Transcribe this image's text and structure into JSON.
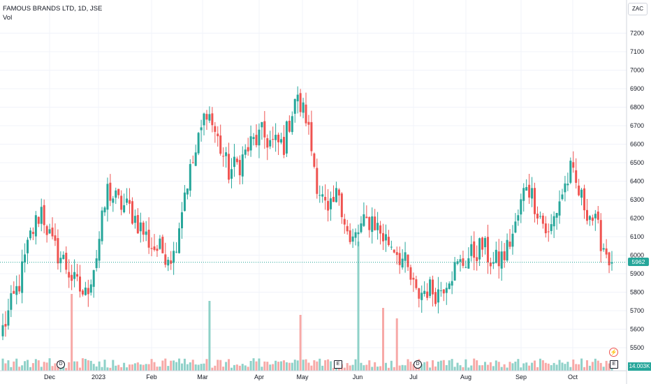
{
  "header": {
    "title": "FAMOUS BRANDS LTD, 1D, JSE",
    "volume_label": "Vol"
  },
  "currency": "ZAC",
  "last_price_label": "5962",
  "volume_value_label": "14.003K",
  "markers": {
    "dividend": "D",
    "earnings": "E",
    "split": "⚡"
  },
  "colors": {
    "up": "#26a69a",
    "down": "#ef5350",
    "up_volume": "#8ed1c8",
    "down_volume": "#f7a9a7",
    "grid": "#f0f3fa"
  },
  "chart_data": {
    "type": "candlestick",
    "title": "FAMOUS BRANDS LTD, 1D, JSE",
    "y_axis": {
      "label": "",
      "range": [
        5450,
        7300
      ],
      "ticks": [
        5500,
        5600,
        5700,
        5800,
        5900,
        6000,
        6100,
        6200,
        6300,
        6400,
        6500,
        6600,
        6700,
        6800,
        6900,
        7000,
        7100,
        7200
      ]
    },
    "x_axis": {
      "tick_labels": [
        "Dec",
        "2023",
        "Feb",
        "Mar",
        "Apr",
        "May",
        "Jun",
        "Jul",
        "Aug",
        "Sep",
        "Oct"
      ]
    },
    "grid": true,
    "last_price": 5962,
    "last_volume": "14.003K",
    "waypoints_close": [
      [
        0,
        5600
      ],
      [
        6,
        5850
      ],
      [
        10,
        6100
      ],
      [
        14,
        6250
      ],
      [
        18,
        6050
      ],
      [
        22,
        5970
      ],
      [
        26,
        5850
      ],
      [
        30,
        5780
      ],
      [
        34,
        6000
      ],
      [
        38,
        6350
      ],
      [
        42,
        6280
      ],
      [
        46,
        6250
      ],
      [
        50,
        6150
      ],
      [
        54,
        6050
      ],
      [
        58,
        6020
      ],
      [
        62,
        6000
      ],
      [
        66,
        6350
      ],
      [
        70,
        6550
      ],
      [
        74,
        6800
      ],
      [
        78,
        6620
      ],
      [
        82,
        6450
      ],
      [
        86,
        6500
      ],
      [
        90,
        6600
      ],
      [
        94,
        6650
      ],
      [
        98,
        6600
      ],
      [
        102,
        6600
      ],
      [
        106,
        6850
      ],
      [
        110,
        6750
      ],
      [
        114,
        6400
      ],
      [
        118,
        6200
      ],
      [
        122,
        6350
      ],
      [
        126,
        6050
      ],
      [
        130,
        6150
      ],
      [
        134,
        6200
      ],
      [
        138,
        6100
      ],
      [
        142,
        6050
      ],
      [
        146,
        5950
      ],
      [
        150,
        5780
      ],
      [
        154,
        5820
      ],
      [
        158,
        5800
      ],
      [
        162,
        5900
      ],
      [
        166,
        5950
      ],
      [
        170,
        6000
      ],
      [
        174,
        6050
      ],
      [
        178,
        5950
      ],
      [
        182,
        6000
      ],
      [
        186,
        6150
      ],
      [
        190,
        6400
      ],
      [
        194,
        6250
      ],
      [
        198,
        6100
      ],
      [
        202,
        6300
      ],
      [
        206,
        6450
      ],
      [
        210,
        6300
      ],
      [
        214,
        6200
      ],
      [
        218,
        6050
      ],
      [
        221,
        5962
      ]
    ],
    "volume_spikes": [
      [
        25,
        110
      ],
      [
        75,
        100
      ],
      [
        108,
        80
      ],
      [
        129,
        185
      ],
      [
        138,
        90
      ],
      [
        143,
        75
      ]
    ]
  }
}
